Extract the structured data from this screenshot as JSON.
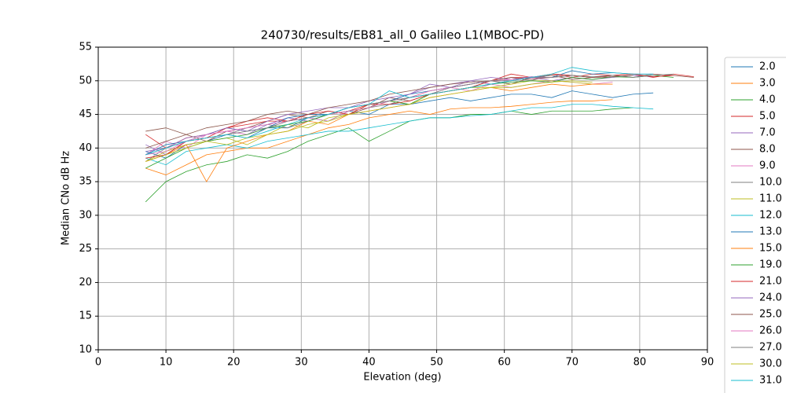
{
  "chart_data": {
    "type": "line",
    "title": "240730/results/EB81_all_0 Galileo L1(MBOC-PD)",
    "xlabel": "Elevation (deg)",
    "ylabel": "Median CNo dB Hz",
    "xlim": [
      0,
      90
    ],
    "ylim": [
      10,
      55
    ],
    "xticks": [
      0,
      10,
      20,
      30,
      40,
      50,
      60,
      70,
      80,
      90
    ],
    "yticks": [
      10,
      15,
      20,
      25,
      30,
      35,
      40,
      45,
      50,
      55
    ],
    "grid": true,
    "legend": "right",
    "x": [
      7,
      10,
      13,
      16,
      19,
      22,
      25,
      28,
      31,
      34,
      37,
      40,
      43,
      46,
      49,
      52,
      55,
      58,
      61,
      64,
      67,
      70,
      73,
      76,
      79,
      82,
      85,
      88
    ],
    "series": [
      {
        "name": "2.0",
        "color": "#1f77b4",
        "values": [
          39.5,
          38.5,
          40.5,
          41,
          42,
          41.5,
          43,
          43,
          44.5,
          44,
          45.5,
          45,
          46.5,
          46.5,
          47,
          47.5,
          47,
          47.5,
          48,
          48,
          47.5,
          48.5,
          48,
          47.5,
          48,
          48.2,
          null,
          null
        ]
      },
      {
        "name": "3.0",
        "color": "#ff7f0e",
        "values": [
          37,
          36,
          37.5,
          39,
          39.5,
          40,
          40,
          41,
          42,
          43,
          43.5,
          44.5,
          45,
          45.5,
          45,
          45.8,
          46,
          46,
          46.2,
          46.5,
          46.8,
          47,
          47,
          47.2,
          null,
          null,
          null,
          null
        ]
      },
      {
        "name": "4.0",
        "color": "#2ca02c",
        "values": [
          32,
          35,
          36.5,
          37.5,
          38,
          39,
          38.5,
          39.5,
          41,
          42,
          43,
          41,
          42.5,
          44,
          44.5,
          44.5,
          45,
          45,
          45.5,
          45,
          45.5,
          45.5,
          45.5,
          45.8,
          46,
          null,
          null,
          null
        ]
      },
      {
        "name": "5.0",
        "color": "#d62728",
        "values": [
          42,
          40,
          41.5,
          42,
          43,
          43.5,
          44,
          44,
          44.5,
          45,
          45.5,
          46.5,
          47,
          47.5,
          48.5,
          49,
          49.5,
          50,
          51,
          50.5,
          51,
          50.5,
          51,
          50.8,
          51,
          50.5,
          51,
          50.6
        ]
      },
      {
        "name": "7.0",
        "color": "#9467bd",
        "values": [
          40.5,
          39,
          41,
          42,
          42.5,
          42,
          43.5,
          44.5,
          44,
          45,
          46,
          46.5,
          47,
          48,
          49.5,
          49,
          50,
          49.5,
          50,
          50.5,
          50,
          50.5,
          50.2,
          50.5,
          50.8,
          50.6,
          null,
          null
        ]
      },
      {
        "name": "8.0",
        "color": "#8c564b",
        "values": [
          42.5,
          43,
          42,
          41,
          42.5,
          43,
          44,
          45,
          44.5,
          45.5,
          45,
          46,
          47.5,
          47,
          48,
          48.5,
          49,
          50,
          49.5,
          50.5,
          50.8,
          50.2,
          50.5,
          50.8,
          50.5,
          51,
          50.8,
          50.5
        ]
      },
      {
        "name": "9.0",
        "color": "#e377c2",
        "values": [
          39,
          41,
          40,
          42,
          42.5,
          42,
          43,
          44,
          44.5,
          44,
          45.5,
          46,
          47,
          47.5,
          48,
          49,
          48.5,
          49.5,
          49,
          49.5,
          50,
          49.8,
          49.5,
          49.8,
          null,
          null,
          null,
          null
        ]
      },
      {
        "name": "10.0",
        "color": "#7f7f7f",
        "values": [
          38,
          40,
          41,
          41.5,
          42,
          43,
          43.5,
          43,
          44,
          45,
          45.5,
          46,
          46.5,
          47.5,
          48,
          48.5,
          49,
          50,
          50.5,
          50,
          51,
          50.8,
          50.5,
          50.6,
          50.8,
          null,
          null,
          null
        ]
      },
      {
        "name": "11.0",
        "color": "#bcbd22",
        "values": [
          38,
          39.5,
          40.5,
          41,
          41.5,
          40.5,
          42,
          43.5,
          43,
          44.5,
          45,
          46.5,
          47,
          46.5,
          48,
          48.5,
          49,
          49,
          49.5,
          50,
          50,
          49.8,
          49.5,
          null,
          null,
          null,
          null,
          null
        ]
      },
      {
        "name": "12.0",
        "color": "#17becf",
        "values": [
          38.5,
          37.5,
          39.5,
          40,
          40.5,
          40,
          41,
          41.5,
          42,
          42.5,
          42.5,
          43,
          43.5,
          44,
          44.5,
          44.5,
          44.8,
          45,
          45.5,
          46,
          46,
          46.5,
          46.5,
          46.2,
          46,
          45.8,
          null,
          null
        ]
      },
      {
        "name": "13.0",
        "color": "#1f77b4",
        "values": [
          39,
          40.5,
          41,
          42,
          43,
          42.5,
          43,
          44.5,
          45,
          45,
          46,
          46.5,
          47,
          48,
          48.5,
          49,
          49.5,
          50,
          50,
          50.5,
          50.5,
          51.5,
          51,
          51.2,
          51,
          51,
          null,
          null
        ]
      },
      {
        "name": "15.0",
        "color": "#ff7f0e",
        "values": [
          38,
          39,
          40.5,
          35,
          40,
          41,
          42,
          42.5,
          44,
          43.5,
          45,
          45.5,
          46,
          46.5,
          47.5,
          48,
          48.5,
          49,
          48.5,
          49,
          49.5,
          49.2,
          49.5,
          49.5,
          null,
          null,
          null,
          null
        ]
      },
      {
        "name": "19.0",
        "color": "#2ca02c",
        "values": [
          37,
          38.5,
          40,
          41,
          41.5,
          42,
          43,
          43.5,
          44,
          45,
          45.5,
          46,
          47,
          46.5,
          48,
          48.5,
          49,
          49.5,
          49.8,
          50,
          49.8,
          50.5,
          50.2,
          50.6,
          50.5,
          50.8,
          50.5,
          null
        ]
      },
      {
        "name": "21.0",
        "color": "#d62728",
        "values": [
          38.5,
          39,
          41,
          41.5,
          43,
          44,
          44.5,
          44,
          45,
          45.5,
          45,
          46.5,
          46.5,
          47,
          48,
          48.5,
          49,
          50,
          50.5,
          50.5,
          51,
          50.8,
          50.5,
          50.8,
          51,
          50.6,
          50.8,
          null
        ]
      },
      {
        "name": "24.0",
        "color": "#9467bd",
        "values": [
          39.5,
          40,
          41.5,
          42,
          43,
          42.5,
          44,
          45,
          45.5,
          46,
          46,
          47,
          47.5,
          48,
          49,
          49.5,
          50,
          50.5,
          50.2,
          50.6,
          50.5,
          50.8,
          null,
          null,
          null,
          null,
          null,
          null
        ]
      },
      {
        "name": "25.0",
        "color": "#8c564b",
        "values": [
          40,
          41,
          42,
          43,
          43.5,
          44,
          45,
          45.5,
          45,
          46,
          46.5,
          47,
          48,
          48.5,
          49,
          49.5,
          49.8,
          50,
          50.5,
          50.2,
          50.5,
          50.8,
          50.5,
          50.6,
          50.8,
          null,
          null,
          null
        ]
      },
      {
        "name": "26.0",
        "color": "#e377c2",
        "values": [
          39,
          39.5,
          41,
          42,
          42.5,
          43,
          43.5,
          44,
          44.5,
          45,
          45.5,
          46,
          47,
          47.5,
          48.5,
          49,
          49.5,
          50,
          50.2,
          50.4,
          50.5,
          null,
          null,
          null,
          null,
          null,
          null,
          null
        ]
      },
      {
        "name": "27.0",
        "color": "#7f7f7f",
        "values": [
          39,
          40,
          41,
          41.5,
          42,
          42.5,
          43,
          44,
          44.5,
          45,
          46,
          46.5,
          47,
          47.5,
          48,
          49,
          49.5,
          50,
          50,
          50.5,
          50.5,
          50.8,
          50.6,
          50.8,
          50.5,
          50.8,
          51,
          null
        ]
      },
      {
        "name": "30.0",
        "color": "#bcbd22",
        "values": [
          38,
          39,
          40,
          41,
          40.5,
          41.5,
          42,
          42.5,
          43.5,
          44,
          45,
          45.5,
          46,
          46.5,
          47.5,
          48,
          48.5,
          49,
          49,
          49.5,
          49.8,
          50,
          49.8,
          null,
          null,
          null,
          null,
          null
        ]
      },
      {
        "name": "31.0",
        "color": "#17becf",
        "values": [
          39,
          40,
          41,
          41.5,
          42,
          41.5,
          42.5,
          43.5,
          44.5,
          45,
          46,
          46.5,
          48.5,
          47.5,
          48,
          48.5,
          49,
          49.5,
          50,
          50.5,
          51,
          52,
          51.5,
          51.2,
          51,
          51,
          null,
          null
        ]
      }
    ]
  }
}
